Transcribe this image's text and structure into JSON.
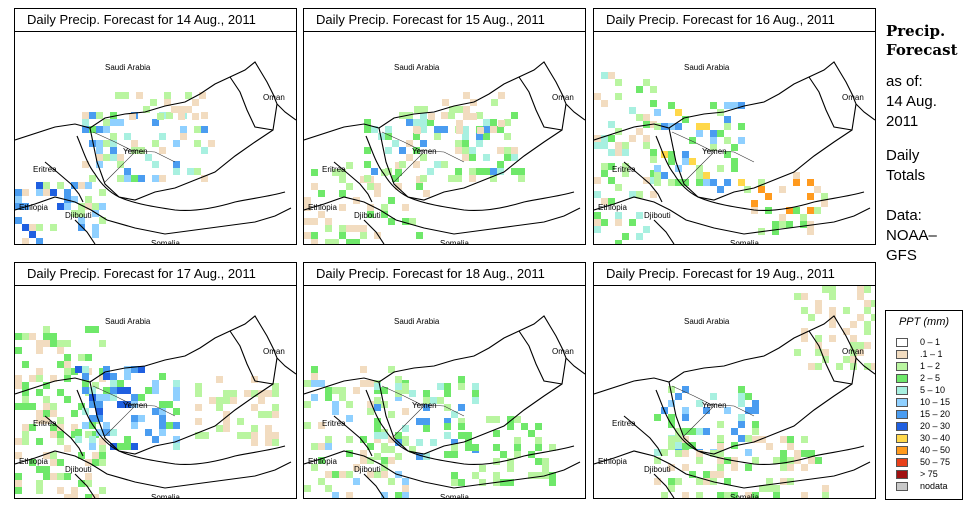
{
  "panels": [
    {
      "title": "Daily Precip. Forecast for  14 Aug., 2011"
    },
    {
      "title": "Daily Precip. Forecast for  15 Aug., 2011"
    },
    {
      "title": "Daily Precip. Forecast for  16 Aug., 2011"
    },
    {
      "title": "Daily Precip. Forecast for  17 Aug., 2011"
    },
    {
      "title": "Daily Precip. Forecast for  18 Aug., 2011"
    },
    {
      "title": "Daily Precip. Forecast for  19 Aug., 2011"
    }
  ],
  "map_labels": {
    "saudi": "Saudi Arabia",
    "oman": "Oman",
    "yemen": "Yemen",
    "eritrea": "Eritrea",
    "ethiopia": "Ethiopia",
    "djibouti": "Djibouti",
    "somalia": "Somalia"
  },
  "sidebar": {
    "title_line1": "Precip.",
    "title_line2": "Forecast",
    "asof": "as of:",
    "date_line1": "14 Aug.",
    "date_line2": "2011",
    "totals_line1": "Daily",
    "totals_line2": "Totals",
    "data_line1": "Data:",
    "data_line2": "NOAA–",
    "data_line3": "GFS"
  },
  "legend": {
    "title": "PPT (mm)",
    "items": [
      {
        "label": "0 – 1",
        "color": "#ffffff"
      },
      {
        "label": ".1 – 1",
        "color": "#f2dcc0"
      },
      {
        "label": "1 – 2",
        "color": "#b9f5a0"
      },
      {
        "label": "2 – 5",
        "color": "#6fe86a"
      },
      {
        "label": "5 – 10",
        "color": "#a8f0e0"
      },
      {
        "label": "10 – 15",
        "color": "#8fd0ff"
      },
      {
        "label": "15 – 20",
        "color": "#4a9cf0"
      },
      {
        "label": "20 – 30",
        "color": "#1f5fe0"
      },
      {
        "label": "30 – 40",
        "color": "#ffd84a"
      },
      {
        "label": "40 – 50",
        "color": "#ff9a1e"
      },
      {
        "label": "50 – 75",
        "color": "#e8401a"
      },
      {
        "label": "> 75",
        "color": "#a01010"
      },
      {
        "label": "nodata",
        "color": "#c8c8c8"
      }
    ]
  }
}
